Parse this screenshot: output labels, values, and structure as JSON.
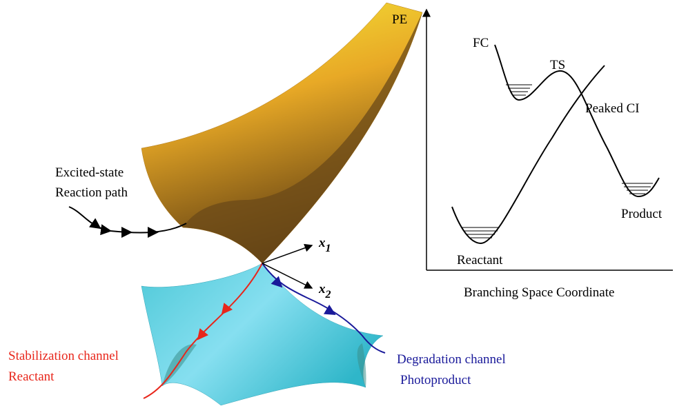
{
  "energy_profile": {
    "y_axis_label": "PE",
    "x_axis_label": "Branching Space Coordinate",
    "labels": {
      "fc": "FC",
      "ts": "TS",
      "ci": "Peaked CI",
      "product": "Product",
      "reactant": "Reactant"
    }
  },
  "surface": {
    "excited_path": [
      "Excited-state",
      "Reaction path"
    ],
    "axes": [
      {
        "symbol": "x",
        "subscript": "1"
      },
      {
        "symbol": "x",
        "subscript": "2"
      }
    ],
    "stabilization": [
      "Stabilization channel",
      "Reactant"
    ],
    "degradation": [
      "Degradation channel",
      "Photoproduct"
    ]
  }
}
